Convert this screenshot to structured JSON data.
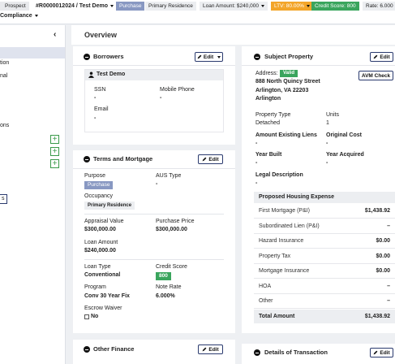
{
  "top_bar": {
    "status": "Prospect",
    "loan": "#R0000012024 / Test Demo",
    "purpose": "Purchase",
    "occupancy": "Primary Residence",
    "loan_amount": "Loan Amount: $240,000",
    "ltv": "LTV: 80.00%",
    "credit_score": "Credit Score: 800",
    "rate": "Rate: 6.000"
  },
  "sub_bar": {
    "compliance": "Compliance"
  },
  "sidebar": {
    "items": [
      "tion",
      "nal",
      "ons"
    ],
    "button": "s"
  },
  "page_title": "Overview",
  "borrowers": {
    "title": "Borrowers",
    "edit": "Edit",
    "name": "Test Demo",
    "ssn_label": "SSN",
    "ssn": "-",
    "phone_label": "Mobile Phone",
    "phone": "-",
    "email_label": "Email",
    "email": "-"
  },
  "terms": {
    "title": "Terms and Mortgage",
    "edit": "Edit",
    "purpose_label": "Purpose",
    "purpose": "Purchase",
    "aus_label": "AUS Type",
    "aus": "-",
    "occupancy_label": "Occupancy",
    "occupancy": "Primary Residence",
    "appraisal_label": "Appraisal Value",
    "appraisal": "$300,000.00",
    "price_label": "Purchase Price",
    "price": "$300,000.00",
    "amount_label": "Loan Amount",
    "amount": "$240,000.00",
    "loan_type_label": "Loan Type",
    "loan_type": "Conventional",
    "credit_label": "Credit Score",
    "credit": "800",
    "program_label": "Program",
    "program": "Conv 30 Year Fix",
    "rate_label": "Note Rate",
    "rate": "6.000%",
    "escrow_label": "Escrow Waiver",
    "escrow": "No"
  },
  "subject": {
    "title": "Subject Property",
    "edit": "Edit",
    "address_label": "Address:",
    "valid": "Valid",
    "avm": "AVM Check",
    "address": [
      "888 North Quincy Street",
      "Arlington, VA 22203",
      "Arlington"
    ],
    "property_type_label": "Property Type",
    "property_type": "Detached",
    "units_label": "Units",
    "units": "1",
    "liens_label": "Amount Existing Liens",
    "liens": "-",
    "cost_label": "Original Cost",
    "cost": "-",
    "built_label": "Year Built",
    "built": "-",
    "acquired_label": "Year Acquired",
    "acquired": "-",
    "legal_label": "Legal Description",
    "legal": "-",
    "expense": {
      "title": "Proposed Housing Expense",
      "rows": [
        [
          "First Mortgage (P&I)",
          "$1,438.92"
        ],
        [
          "Subordinated Lien (P&I)",
          "–"
        ],
        [
          "Hazard Insurance",
          "$0.00"
        ],
        [
          "Property Tax",
          "$0.00"
        ],
        [
          "Mortgage Insurance",
          "$0.00"
        ],
        [
          "HOA",
          "–"
        ],
        [
          "Other",
          "–"
        ]
      ],
      "total_label": "Total Amount",
      "total": "$1,438.92"
    }
  },
  "other_finance": {
    "title": "Other Finance",
    "edit": "Edit"
  },
  "details": {
    "title": "Details of Transaction",
    "edit": "Edit"
  }
}
